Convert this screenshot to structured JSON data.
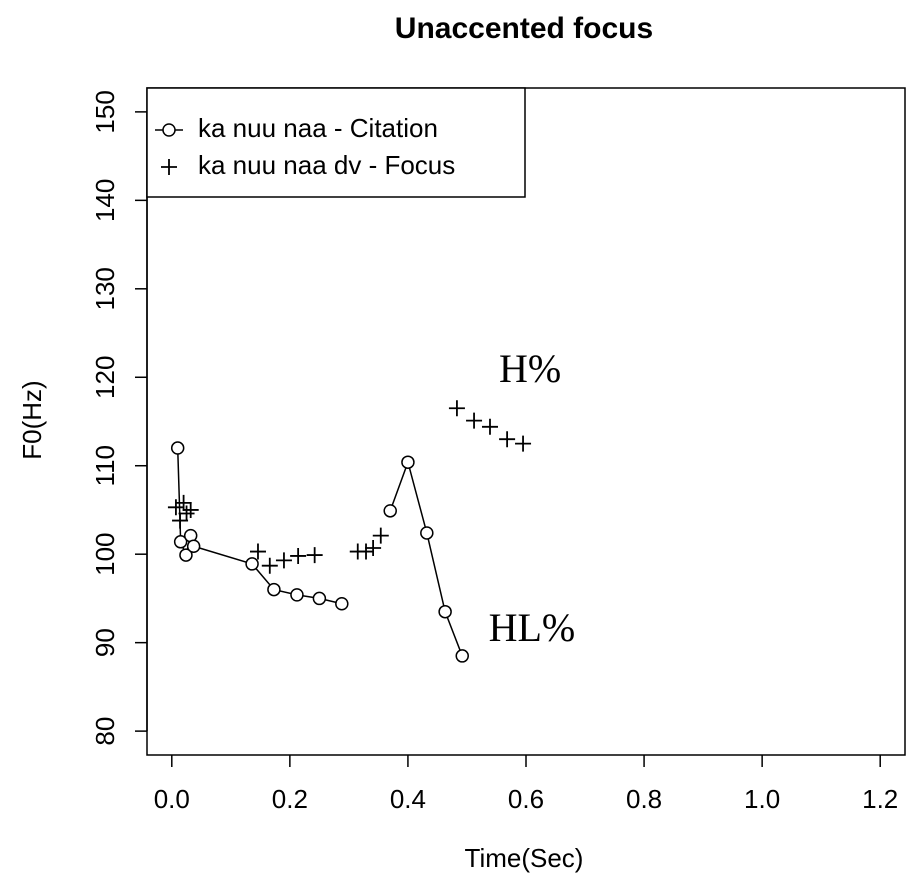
{
  "chart_data": {
    "type": "line",
    "title": "Unaccented focus",
    "x_label": "Time(Sec)",
    "y_label": "F0(Hz)",
    "xlim": [
      -0.042,
      1.242
    ],
    "ylim": [
      77.3,
      152.7
    ],
    "xticks": [
      {
        "value": 0,
        "label": "0.0"
      },
      0.2,
      0.4,
      0.6,
      0.8,
      {
        "value": 1,
        "label": "1.0"
      },
      1.2
    ],
    "yticks": [
      80,
      90,
      100,
      110,
      120,
      130,
      140,
      150
    ],
    "legend": "top-left",
    "series": [
      {
        "name": "ka nuu naa - Citation",
        "color": "#000000",
        "marker": "circle",
        "line": true,
        "x": [
          0.01,
          0.015,
          0.024,
          0.032,
          0.037,
          0.136,
          0.173,
          0.212,
          0.25,
          0.288,
          null,
          0.37,
          0.4,
          0.432,
          0.463,
          0.492
        ],
        "values": [
          112,
          101.4,
          99.9,
          102.1,
          100.9,
          98.9,
          96,
          95.4,
          95,
          94.4,
          null,
          104.9,
          110.4,
          102.4,
          93.5,
          88.5
        ]
      },
      {
        "name": "ka nuu naa dv - Focus",
        "color": "#000000",
        "marker": "plus",
        "line": false,
        "x": [
          0.007,
          0.014,
          0.02,
          0.025,
          0.032,
          0.146,
          0.166,
          0.19,
          0.214,
          0.242,
          0.315,
          0.329,
          0.341,
          0.354,
          0.483,
          0.512,
          0.539,
          0.568,
          0.595
        ],
        "values": [
          105.3,
          103.8,
          105.8,
          104.6,
          105,
          100.3,
          98.7,
          99.3,
          99.8,
          99.9,
          100.3,
          100.3,
          100.7,
          102.1,
          116.5,
          115.1,
          114.4,
          113,
          112.5
        ]
      }
    ],
    "annotations": [
      {
        "text": "H%",
        "x": 0.607,
        "y": 120.5
      },
      {
        "text": "HL%",
        "x": 0.61,
        "y": 91.2
      }
    ]
  }
}
